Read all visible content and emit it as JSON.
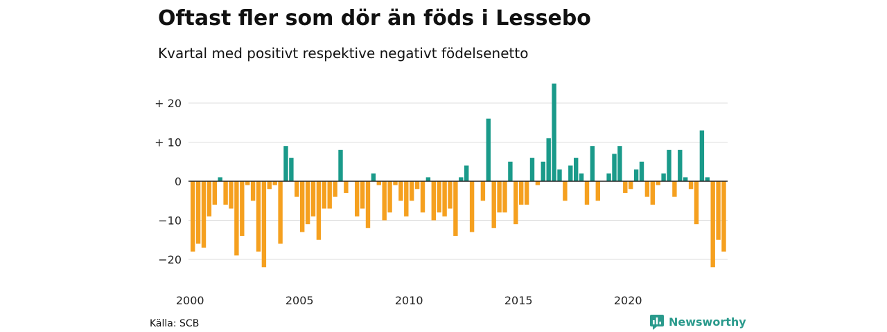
{
  "title": "Oftast fler som dör än föds i Lessebo",
  "subtitle": "Kvartal med positivt respektive negativt födelsenetto",
  "source": "Källa: SCB",
  "brand": {
    "name": "Newsworthy",
    "icon": "newsworthy-logo-icon"
  },
  "colors": {
    "positive": "#1a9a8a",
    "negative": "#f5a01f",
    "grid": "#dddddd",
    "zero": "#222222"
  },
  "chart_data": {
    "type": "bar",
    "title": "Oftast fler som dör än föds i Lessebo",
    "subtitle": "Kvartal med positivt respektive negativt födelsenetto",
    "xlabel": "",
    "ylabel": "",
    "x_start": "2000",
    "x_step": "quarter",
    "xticks": [
      {
        "label": "2000",
        "index": 0
      },
      {
        "label": "2005",
        "index": 20
      },
      {
        "label": "2010",
        "index": 40
      },
      {
        "label": "2015",
        "index": 60
      },
      {
        "label": "2020",
        "index": 80
      }
    ],
    "yticks": [
      {
        "label": "+ 20",
        "value": 20
      },
      {
        "label": "+ 10",
        "value": 10
      },
      {
        "label": "0",
        "value": 0
      },
      {
        "label": "−10",
        "value": -10
      },
      {
        "label": "−20",
        "value": -20
      }
    ],
    "ylim": [
      -22,
      25
    ],
    "grid": true,
    "values": [
      -18,
      -16,
      -17,
      -9,
      -6,
      1,
      -6,
      -7,
      -19,
      -14,
      -1,
      -5,
      -18,
      -22,
      -2,
      -1,
      -16,
      9,
      6,
      -4,
      -13,
      -11,
      -9,
      -15,
      -7,
      -7,
      -4,
      8,
      -3,
      0,
      -9,
      -7,
      -12,
      2,
      -1,
      -10,
      -8,
      -1,
      -5,
      -9,
      -5,
      -2,
      -8,
      1,
      -10,
      -8,
      -9,
      -7,
      -14,
      1,
      4,
      -13,
      0,
      -5,
      16,
      -12,
      -8,
      -8,
      5,
      -11,
      -6,
      -6,
      6,
      -1,
      5,
      11,
      25,
      3,
      -5,
      4,
      6,
      2,
      -6,
      9,
      -5,
      0,
      2,
      7,
      9,
      -3,
      -2,
      3,
      5,
      -4,
      -6,
      -1,
      2,
      8,
      -4,
      8,
      1,
      -2,
      -11,
      13,
      1,
      -22,
      -15,
      -18
    ]
  }
}
